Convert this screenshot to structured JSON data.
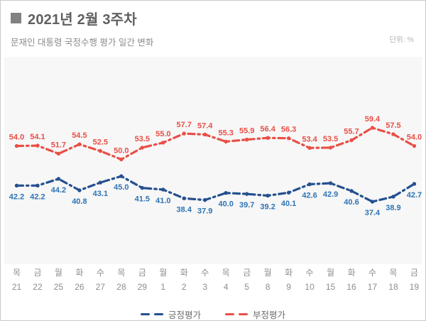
{
  "header": {
    "title": "2021년 2월 3주차",
    "subtitle": "문재인 대통령 국정수행 평가 일간 변화",
    "unit_label": "단위: %"
  },
  "chart_data": {
    "type": "line",
    "title": "문재인 대통령 국정수행 평가 일간 변화",
    "unit": "%",
    "line_style": "dash-dot",
    "grid": false,
    "legend_position": "bottom",
    "plot_background": "#f7f7f7",
    "ylim": [
      35,
      63
    ],
    "x_days": [
      "목",
      "금",
      "월",
      "화",
      "수",
      "목",
      "금",
      "월",
      "화",
      "수",
      "목",
      "금",
      "월",
      "화",
      "수",
      "월",
      "화",
      "수",
      "목",
      "금"
    ],
    "x_dates": [
      "21",
      "22",
      "25",
      "26",
      "27",
      "28",
      "29",
      "1",
      "2",
      "3",
      "4",
      "5",
      "8",
      "9",
      "10",
      "15",
      "16",
      "17",
      "18",
      "19"
    ],
    "series": [
      {
        "id": "positive",
        "name": "긍정평가",
        "line_color": "#24508f",
        "label_color": "#2e74b5",
        "label_position": "below",
        "values": [
          42.2,
          42.2,
          44.2,
          40.8,
          43.1,
          45.0,
          41.5,
          41.0,
          38.4,
          37.9,
          40.0,
          39.7,
          39.2,
          40.1,
          42.6,
          42.9,
          40.6,
          37.4,
          38.9,
          42.7
        ]
      },
      {
        "id": "negative",
        "name": "부정평가",
        "line_color": "#e94f46",
        "label_color": "#e94f46",
        "label_position": "above",
        "values": [
          54.0,
          54.1,
          51.7,
          54.5,
          52.5,
          50.0,
          53.5,
          55.0,
          57.7,
          57.4,
          55.3,
          55.9,
          56.4,
          56.3,
          53.4,
          53.5,
          55.7,
          59.4,
          57.5,
          54.0
        ]
      }
    ]
  }
}
